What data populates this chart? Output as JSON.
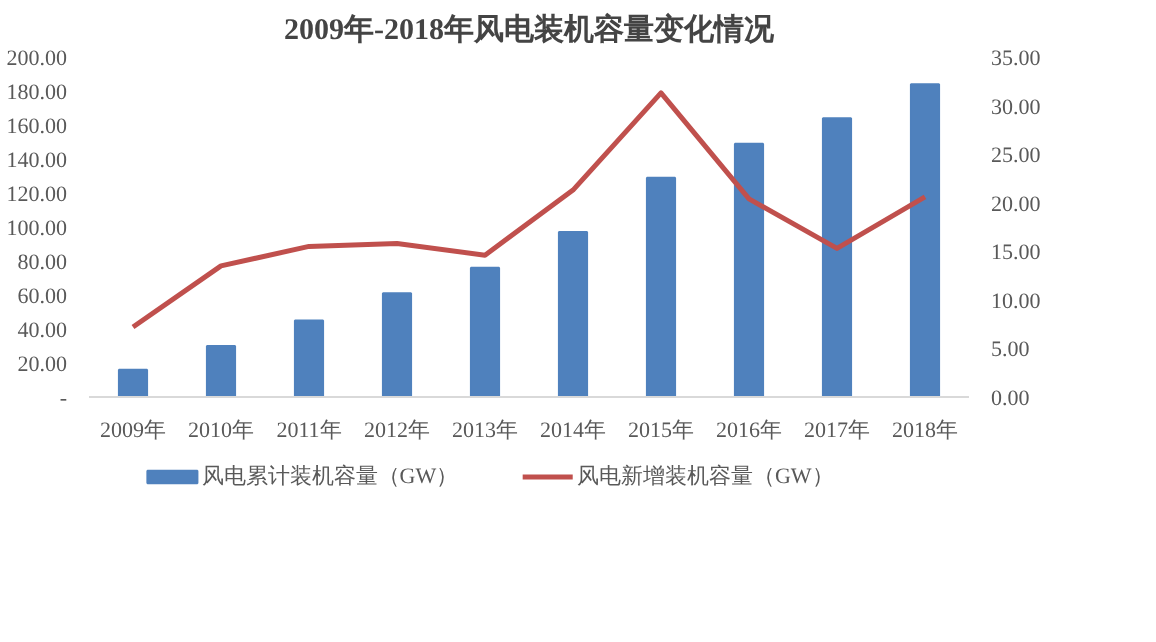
{
  "chart_data": {
    "type": "bar",
    "title": "2009年-2018年风电装机容量变化情况",
    "categories": [
      "2009年",
      "2010年",
      "2011年",
      "2012年",
      "2013年",
      "2014年",
      "2015年",
      "2016年",
      "2017年",
      "2018年"
    ],
    "series": [
      {
        "name": "风电累计装机容量（GW）",
        "color": "#4f81bd",
        "values": [
          16,
          30,
          45,
          61,
          76,
          97,
          129,
          149,
          164,
          184
        ]
      },
      {
        "name": "风电新增装机容量（GW）",
        "type": "line",
        "axis": "y2",
        "color": "#c0504d",
        "values": [
          7.2,
          13.5,
          15.5,
          15.8,
          14.6,
          21.3,
          31.3,
          20.4,
          15.3,
          20.6
        ]
      }
    ],
    "ylim": [
      0,
      200
    ],
    "yticks": [
      {
        "value": 0,
        "label": "-"
      },
      {
        "value": 20,
        "label": "20.00"
      },
      {
        "value": 40,
        "label": "40.00"
      },
      {
        "value": 60,
        "label": "60.00"
      },
      {
        "value": 80,
        "label": "80.00"
      },
      {
        "value": 100,
        "label": "100.00"
      },
      {
        "value": 120,
        "label": "120.00"
      },
      {
        "value": 140,
        "label": "140.00"
      },
      {
        "value": 160,
        "label": "160.00"
      },
      {
        "value": 180,
        "label": "180.00"
      },
      {
        "value": 200,
        "label": "200.00"
      }
    ],
    "y2lim": [
      0,
      35
    ],
    "y2ticks": [
      {
        "value": 0,
        "label": "0.00"
      },
      {
        "value": 5,
        "label": "5.00"
      },
      {
        "value": 10,
        "label": "10.00"
      },
      {
        "value": 15,
        "label": "15.00"
      },
      {
        "value": 20,
        "label": "20.00"
      },
      {
        "value": 25,
        "label": "25.00"
      },
      {
        "value": 30,
        "label": "30.00"
      },
      {
        "value": 35,
        "label": "35.00"
      }
    ],
    "legend": "bottom",
    "grid": false
  }
}
